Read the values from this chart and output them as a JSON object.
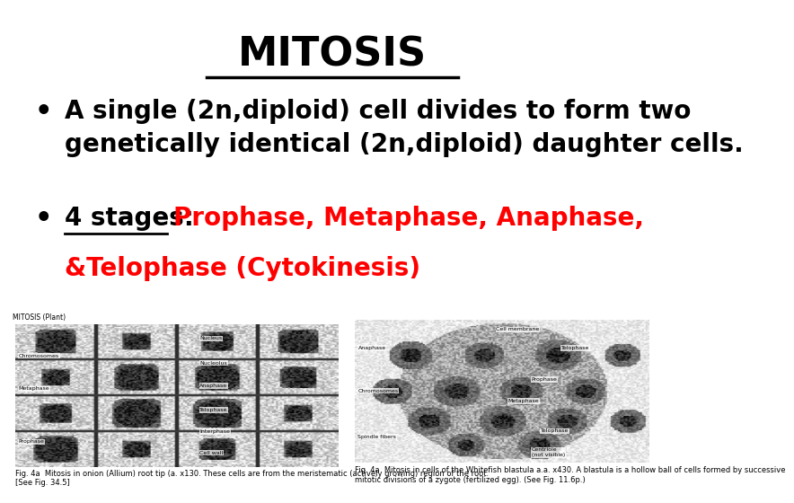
{
  "title": "MITOSIS",
  "title_fontsize": 32,
  "title_color": "#000000",
  "bullet1_text": "A single (2n,diploid) cell divides to form two\ngenetically identical (2n,diploid) daughter cells.",
  "bullet2_black": "4 stages:",
  "bullet2_red": "Prophase, Metaphase, Anaphase,",
  "bullet2_red2": "&Telophase (Cytokinesis)",
  "bullet_fontsize": 20,
  "background_color": "#ffffff",
  "caption1": "Fig. 4a  Mitosis in onion (Allium) root tip (a. x130. These cells are from the meristematic (actively growing) region of the root.\n[See Fig. 34.5]",
  "caption2": "Fig. 4a  Mitosis in cells of the Whitefish blastula a.a. x430. A blastula is a hollow ball of cells formed by successive\nmitotic divisions of a zygote (fertilized egg). (See Fig. 11.6p.)",
  "caption_fontsize": 6,
  "small_label": "MITOSIS (Plant)"
}
